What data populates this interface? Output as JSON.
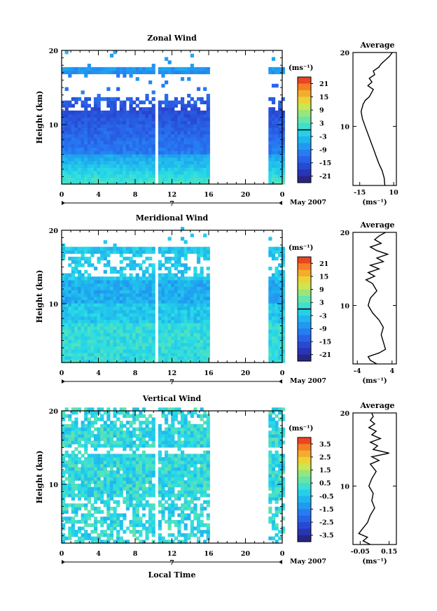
{
  "chart_data": [
    {
      "type": "heatmap",
      "title": "Zonal Wind",
      "ylabel": "Height (km)",
      "y_ticks": [
        "20",
        "10"
      ],
      "ylim": [
        2,
        20
      ],
      "x_ticks": [
        "0",
        "4",
        "8",
        "12",
        "16",
        "20",
        "0"
      ],
      "xlim": [
        0,
        24
      ],
      "date_day": "7",
      "date_label": "May 2007",
      "data_coverage_hours": [
        [
          0,
          16
        ],
        [
          22.5,
          24
        ]
      ],
      "colorbar": {
        "units": "(ms⁻¹)",
        "ticks": [
          "21",
          "15",
          "9",
          "3",
          "-3",
          "-9",
          "-15",
          "-21"
        ],
        "range": [
          -24,
          24
        ],
        "zero_line": true
      },
      "average_profile": {
        "title": "Average",
        "x_ticks": [
          "-15",
          "10"
        ],
        "xlim": [
          -20,
          12
        ],
        "xlabel": "(ms⁻¹)",
        "y_ticks": [
          "20",
          "10"
        ],
        "height_km": [
          2,
          3,
          4,
          5,
          6,
          7,
          8,
          9,
          10,
          11,
          12,
          13,
          13.5,
          14,
          15,
          15.5,
          16,
          16.5,
          17,
          17.5,
          18,
          18.5,
          19,
          19.5,
          20
        ],
        "value": [
          3.5,
          3,
          1.5,
          -1,
          -3,
          -5,
          -7,
          -9,
          -11,
          -13,
          -14,
          -12.5,
          -11,
          -8,
          -5,
          -9,
          -6,
          -8,
          -4,
          -5,
          -1,
          1,
          4,
          7,
          9
        ]
      }
    },
    {
      "type": "heatmap",
      "title": "Meridional Wind",
      "ylabel": "Height (km)",
      "y_ticks": [
        "20",
        "10"
      ],
      "ylim": [
        2,
        20
      ],
      "x_ticks": [
        "0",
        "4",
        "8",
        "12",
        "16",
        "20",
        "0"
      ],
      "xlim": [
        0,
        24
      ],
      "date_day": "7",
      "date_label": "May 2007",
      "data_coverage_hours": [
        [
          0,
          16
        ],
        [
          22.5,
          24
        ]
      ],
      "colorbar": {
        "units": "(ms⁻¹)",
        "ticks": [
          "21",
          "15",
          "9",
          "3",
          "-3",
          "-9",
          "-15",
          "-21"
        ],
        "range": [
          -24,
          24
        ],
        "zero_line": true
      },
      "average_profile": {
        "title": "Average",
        "x_ticks": [
          "-4",
          "4"
        ],
        "xlim": [
          -5,
          5
        ],
        "xlabel": "(ms⁻¹)",
        "y_ticks": [
          "20",
          "10"
        ],
        "height_km": [
          2,
          2.5,
          3,
          3.5,
          4,
          5,
          6,
          7,
          8,
          9,
          10,
          11,
          12,
          13,
          13.5,
          14,
          14.5,
          15,
          15.5,
          16,
          16.5,
          17,
          17.5,
          18,
          18.5,
          19,
          19.5,
          20
        ],
        "value": [
          0.5,
          -1,
          -1.5,
          1,
          2.5,
          2,
          1.5,
          2,
          1,
          -0.5,
          -1.5,
          -1,
          0.5,
          -0.5,
          -2,
          0,
          -1.5,
          1,
          -1,
          2,
          0.5,
          3,
          0.5,
          -1,
          1.5,
          0,
          1,
          2.5
        ]
      }
    },
    {
      "type": "heatmap",
      "title": "Vertical Wind",
      "ylabel": "Height (km)",
      "xlabel": "Local Time",
      "y_ticks": [
        "20",
        "10"
      ],
      "ylim": [
        2,
        20
      ],
      "x_ticks": [
        "0",
        "4",
        "8",
        "12",
        "16",
        "20",
        "0"
      ],
      "xlim": [
        0,
        24
      ],
      "date_day": "7",
      "date_label": "May 2007",
      "data_coverage_hours": [
        [
          0,
          16
        ],
        [
          22.5,
          24
        ]
      ],
      "colorbar": {
        "units": "(ms⁻¹)",
        "ticks": [
          "3.5",
          "2.5",
          "1.5",
          "0.5",
          "-0.5",
          "-1.5",
          "-2.5",
          "-3.5"
        ],
        "range": [
          -4,
          4
        ],
        "zero_line": false
      },
      "average_profile": {
        "title": "Average",
        "x_ticks": [
          "-0.05",
          "0.15"
        ],
        "xlim": [
          -0.1,
          0.2
        ],
        "xlabel": "(ms⁻¹)",
        "y_ticks": [
          "20",
          "10"
        ],
        "height_km": [
          2,
          2.5,
          3,
          3.5,
          4,
          5,
          6,
          7,
          8,
          9,
          10,
          11,
          12,
          13,
          13.5,
          14,
          14.5,
          15,
          15.5,
          16,
          16.5,
          17,
          17.5,
          18,
          18.5,
          19,
          19.5,
          20
        ],
        "value": [
          0.02,
          -0.03,
          0.0,
          -0.06,
          -0.04,
          0.0,
          0.02,
          0.05,
          0.03,
          0.04,
          0.01,
          0.03,
          0.06,
          0.02,
          0.08,
          0.03,
          0.15,
          0.04,
          0.07,
          0.02,
          0.09,
          0.03,
          0.06,
          0.01,
          0.05,
          0.02,
          0.04,
          0.03
        ]
      }
    }
  ]
}
